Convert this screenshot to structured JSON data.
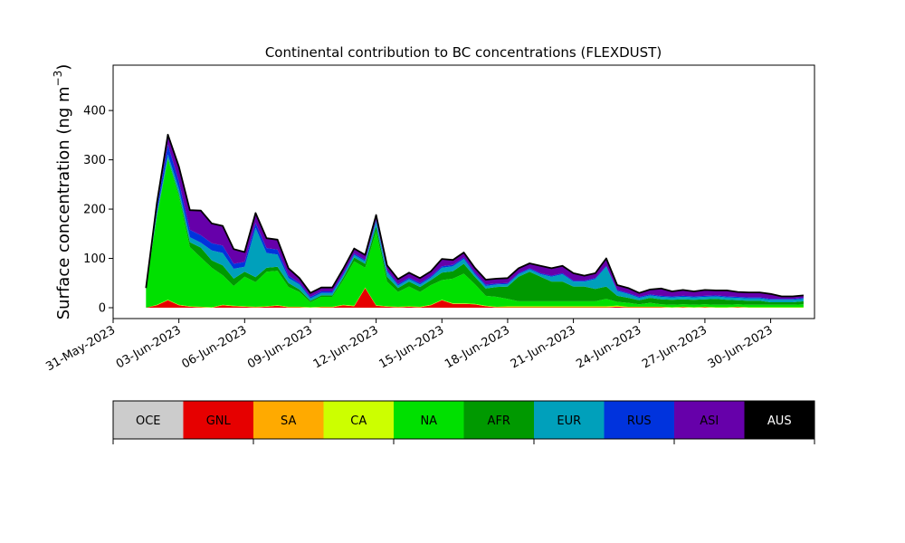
{
  "chart_data": {
    "type": "area",
    "title": "Continental contribution to BC concentrations (FLEXDUST)",
    "ylabel": "Surface concentration (ng m",
    "ylabel_sup": "−3",
    "ylabel_close": ")",
    "xlabel": "",
    "xlim": [
      "2023-05-31",
      "2023-07-02"
    ],
    "ylim": [
      -22,
      492
    ],
    "yticks": [
      0,
      100,
      200,
      300,
      400
    ],
    "xtick_labels": [
      "31-May-2023",
      "03-Jun-2023",
      "06-Jun-2023",
      "09-Jun-2023",
      "12-Jun-2023",
      "15-Jun-2023",
      "18-Jun-2023",
      "21-Jun-2023",
      "24-Jun-2023",
      "27-Jun-2023",
      "30-Jun-2023"
    ],
    "xtick_dates": [
      "2023-05-31",
      "2023-06-03",
      "2023-06-06",
      "2023-06-09",
      "2023-06-12",
      "2023-06-15",
      "2023-06-18",
      "2023-06-21",
      "2023-06-24",
      "2023-06-27",
      "2023-06-30"
    ],
    "x": [
      "2023-06-01 12:00",
      "2023-06-02 00:00",
      "2023-06-02 12:00",
      "2023-06-03 00:00",
      "2023-06-03 12:00",
      "2023-06-04 00:00",
      "2023-06-04 12:00",
      "2023-06-05 00:00",
      "2023-06-05 12:00",
      "2023-06-06 00:00",
      "2023-06-06 12:00",
      "2023-06-07 00:00",
      "2023-06-07 12:00",
      "2023-06-08 00:00",
      "2023-06-08 12:00",
      "2023-06-09 00:00",
      "2023-06-09 12:00",
      "2023-06-10 00:00",
      "2023-06-10 12:00",
      "2023-06-11 00:00",
      "2023-06-11 12:00",
      "2023-06-12 00:00",
      "2023-06-12 12:00",
      "2023-06-13 00:00",
      "2023-06-13 12:00",
      "2023-06-14 00:00",
      "2023-06-14 12:00",
      "2023-06-15 00:00",
      "2023-06-15 12:00",
      "2023-06-16 00:00",
      "2023-06-16 12:00",
      "2023-06-17 00:00",
      "2023-06-17 12:00",
      "2023-06-18 00:00",
      "2023-06-18 12:00",
      "2023-06-19 00:00",
      "2023-06-19 12:00",
      "2023-06-20 00:00",
      "2023-06-20 12:00",
      "2023-06-21 00:00",
      "2023-06-21 12:00",
      "2023-06-22 00:00",
      "2023-06-22 12:00",
      "2023-06-23 00:00",
      "2023-06-23 12:00",
      "2023-06-24 00:00",
      "2023-06-24 12:00",
      "2023-06-25 00:00",
      "2023-06-25 12:00",
      "2023-06-26 00:00",
      "2023-06-26 12:00",
      "2023-06-27 00:00",
      "2023-06-27 12:00",
      "2023-06-28 00:00",
      "2023-06-28 12:00",
      "2023-06-29 00:00",
      "2023-06-29 12:00",
      "2023-06-30 00:00",
      "2023-06-30 12:00",
      "2023-07-01 00:00",
      "2023-07-01 12:00"
    ],
    "series": [
      {
        "name": "OCE",
        "color": "#cccccc",
        "values": [
          0,
          0,
          0,
          0,
          0,
          0,
          0,
          0,
          0,
          0,
          0,
          0,
          0,
          0,
          0,
          0,
          0,
          0,
          0,
          0,
          0,
          0,
          0,
          0,
          0,
          0,
          0,
          0,
          0,
          0,
          0,
          0,
          0,
          0,
          0,
          0,
          0,
          0,
          0,
          0,
          0,
          0,
          0,
          0,
          0,
          0,
          0,
          0,
          0,
          0,
          0,
          0,
          0,
          0,
          0,
          0,
          0,
          0,
          0,
          0,
          0
        ]
      },
      {
        "name": "GNL",
        "color": "#e60000",
        "values": [
          0,
          5,
          15,
          5,
          2,
          1,
          0,
          5,
          3,
          2,
          1,
          2,
          4,
          1,
          1,
          0,
          1,
          1,
          5,
          3,
          40,
          4,
          2,
          1,
          2,
          1,
          5,
          15,
          8,
          8,
          7,
          3,
          1,
          1,
          1,
          1,
          1,
          1,
          1,
          1,
          1,
          1,
          1,
          2,
          1,
          1,
          1,
          1,
          0,
          1,
          0,
          1,
          0,
          0,
          1,
          0,
          0,
          0,
          0,
          0,
          0
        ]
      },
      {
        "name": "SA",
        "color": "#ffaa00",
        "values": [
          0,
          0,
          0,
          0,
          0,
          0,
          0,
          0,
          0,
          0,
          0,
          0,
          0,
          0,
          0,
          0,
          0,
          0,
          0,
          0,
          0,
          0,
          0,
          0,
          0,
          0,
          0,
          0,
          0,
          0,
          0,
          0,
          0,
          0,
          0,
          0,
          0,
          0,
          0,
          0,
          0,
          0,
          0,
          0,
          0,
          0,
          0,
          0,
          0,
          0,
          0,
          0,
          0,
          0,
          0,
          0,
          0,
          0,
          0,
          0,
          0
        ]
      },
      {
        "name": "CA",
        "color": "#ccff00",
        "values": [
          0,
          1,
          1,
          1,
          1,
          1,
          1,
          1,
          1,
          1,
          1,
          1,
          1,
          1,
          1,
          1,
          1,
          1,
          1,
          1,
          1,
          1,
          1,
          1,
          1,
          1,
          1,
          1,
          1,
          1,
          1,
          1,
          1,
          2,
          2,
          2,
          2,
          2,
          2,
          2,
          2,
          2,
          2,
          2,
          1,
          1,
          1,
          1,
          1,
          1,
          1,
          1,
          1,
          1,
          1,
          1,
          1,
          1,
          1,
          1,
          1
        ]
      },
      {
        "name": "NA",
        "color": "#00e000",
        "values": [
          40,
          180,
          285,
          220,
          120,
          100,
          80,
          60,
          40,
          60,
          50,
          70,
          70,
          40,
          30,
          10,
          20,
          20,
          50,
          90,
          40,
          150,
          50,
          30,
          40,
          30,
          40,
          40,
          50,
          60,
          40,
          20,
          20,
          15,
          10,
          10,
          10,
          10,
          10,
          10,
          10,
          10,
          15,
          8,
          8,
          5,
          8,
          5,
          5,
          5,
          5,
          5,
          5,
          5,
          5,
          5,
          5,
          5,
          5,
          5,
          6
        ]
      },
      {
        "name": "AFR",
        "color": "#009900",
        "values": [
          0,
          2,
          2,
          5,
          10,
          20,
          15,
          20,
          15,
          10,
          10,
          8,
          8,
          8,
          5,
          3,
          3,
          3,
          5,
          8,
          8,
          10,
          10,
          8,
          10,
          10,
          10,
          15,
          15,
          20,
          15,
          15,
          20,
          25,
          50,
          60,
          50,
          40,
          40,
          30,
          30,
          25,
          25,
          12,
          10,
          8,
          10,
          10,
          10,
          10,
          10,
          10,
          12,
          10,
          8,
          8,
          8,
          5,
          5,
          5,
          6
        ]
      },
      {
        "name": "EUR",
        "color": "#00a0bb",
        "values": [
          0,
          5,
          8,
          10,
          10,
          10,
          20,
          25,
          20,
          10,
          100,
          30,
          25,
          10,
          10,
          5,
          5,
          5,
          5,
          5,
          5,
          10,
          10,
          5,
          5,
          5,
          5,
          10,
          10,
          10,
          5,
          5,
          5,
          5,
          5,
          5,
          5,
          10,
          15,
          10,
          10,
          20,
          40,
          10,
          8,
          5,
          5,
          5,
          5,
          5,
          5,
          5,
          5,
          5,
          5,
          5,
          5,
          5,
          5,
          5,
          5
        ]
      },
      {
        "name": "RUS",
        "color": "#0033dd",
        "values": [
          0,
          10,
          20,
          15,
          15,
          15,
          15,
          15,
          10,
          10,
          10,
          10,
          10,
          5,
          3,
          3,
          3,
          3,
          3,
          3,
          3,
          3,
          3,
          3,
          3,
          3,
          3,
          3,
          3,
          3,
          3,
          3,
          2,
          2,
          2,
          2,
          2,
          2,
          2,
          2,
          2,
          2,
          2,
          2,
          2,
          2,
          2,
          2,
          2,
          2,
          2,
          2,
          2,
          2,
          2,
          2,
          2,
          2,
          2,
          2,
          2
        ]
      },
      {
        "name": "ASI",
        "color": "#6600aa",
        "values": [
          0,
          10,
          20,
          30,
          40,
          50,
          40,
          40,
          30,
          20,
          20,
          20,
          20,
          15,
          10,
          8,
          8,
          8,
          10,
          10,
          10,
          10,
          10,
          10,
          10,
          10,
          10,
          15,
          10,
          10,
          10,
          10,
          10,
          10,
          10,
          10,
          15,
          15,
          15,
          15,
          10,
          10,
          15,
          10,
          10,
          8,
          10,
          15,
          10,
          12,
          10,
          12,
          10,
          12,
          10,
          10,
          10,
          10,
          5,
          5,
          5
        ]
      },
      {
        "name": "AUS",
        "color": "#000000",
        "values": [
          0,
          0,
          0,
          0,
          0,
          0,
          0,
          0,
          0,
          0,
          0,
          0,
          0,
          0,
          0,
          0,
          0,
          0,
          0,
          0,
          0,
          0,
          0,
          0,
          0,
          0,
          0,
          0,
          0,
          0,
          0,
          0,
          0,
          0,
          0,
          0,
          0,
          0,
          0,
          0,
          0,
          0,
          0,
          0,
          0,
          0,
          0,
          0,
          0,
          0,
          0,
          0,
          0,
          0,
          0,
          0,
          0,
          0,
          0,
          0,
          0
        ]
      }
    ],
    "legend": {
      "placement": "bottom",
      "items": [
        {
          "label": "OCE",
          "color": "#cccccc",
          "text_color": "#000000"
        },
        {
          "label": "GNL",
          "color": "#e60000",
          "text_color": "#000000"
        },
        {
          "label": "SA",
          "color": "#ffaa00",
          "text_color": "#000000"
        },
        {
          "label": "CA",
          "color": "#ccff00",
          "text_color": "#000000"
        },
        {
          "label": "NA",
          "color": "#00e000",
          "text_color": "#000000"
        },
        {
          "label": "AFR",
          "color": "#009900",
          "text_color": "#000000"
        },
        {
          "label": "EUR",
          "color": "#00a0bb",
          "text_color": "#000000"
        },
        {
          "label": "RUS",
          "color": "#0033dd",
          "text_color": "#000000"
        },
        {
          "label": "ASI",
          "color": "#6600aa",
          "text_color": "#000000"
        },
        {
          "label": "AUS",
          "color": "#000000",
          "text_color": "#ffffff"
        }
      ]
    },
    "grid": false
  }
}
